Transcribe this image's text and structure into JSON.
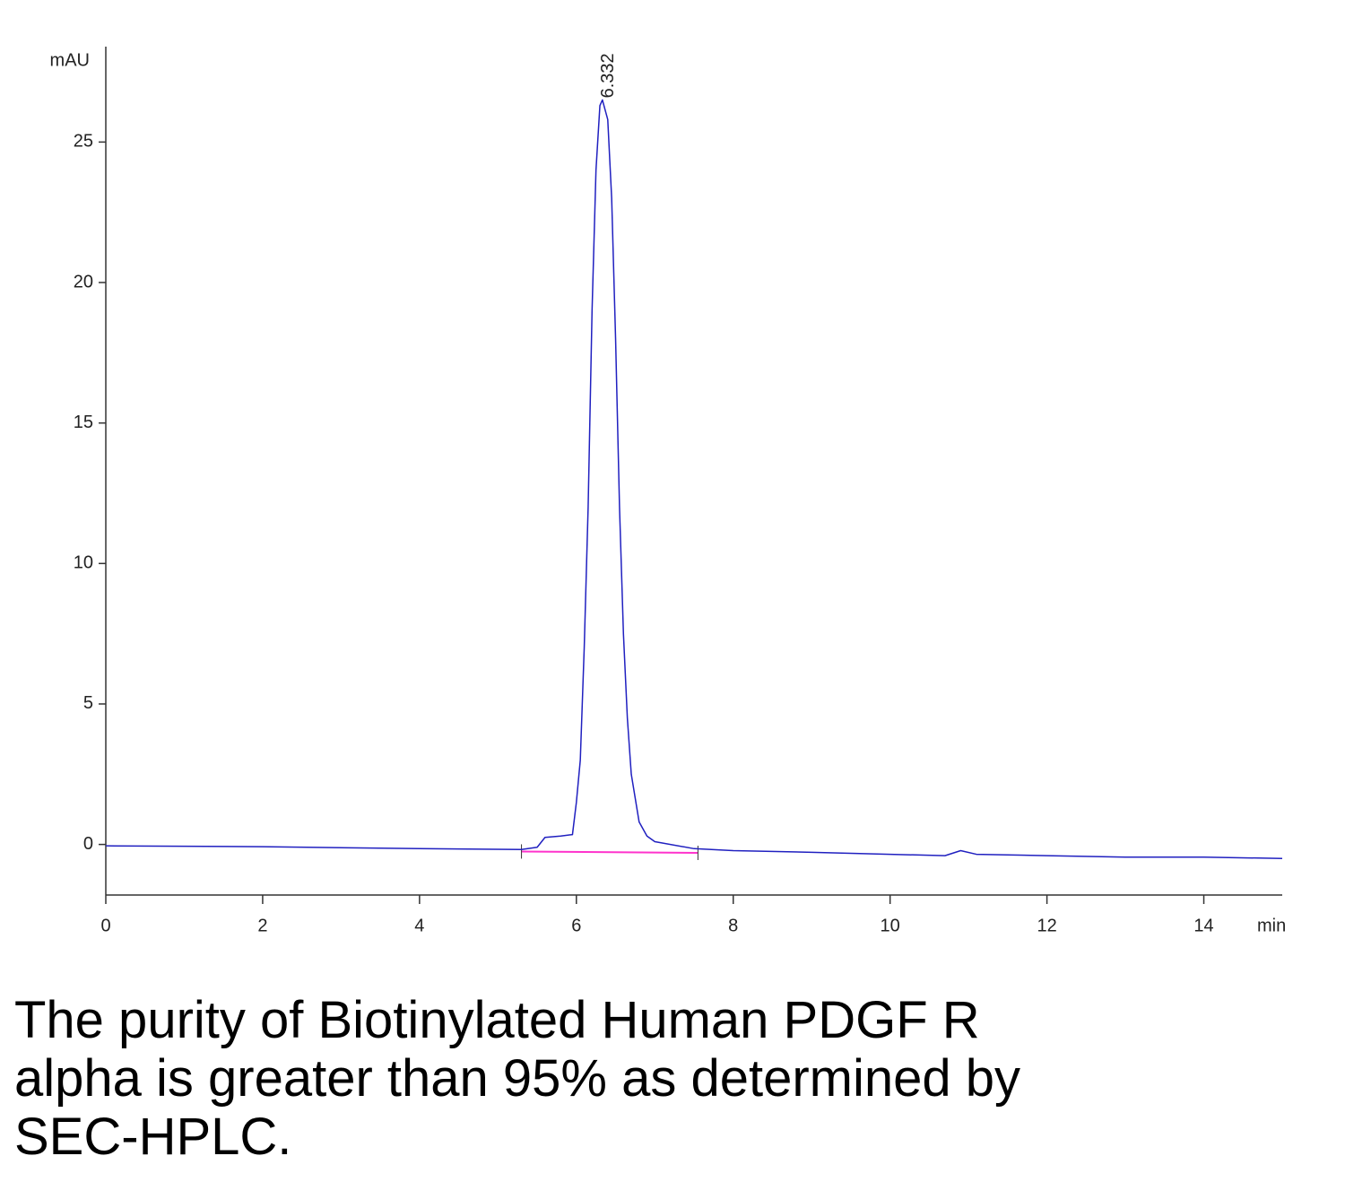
{
  "chart_data": {
    "type": "line",
    "y_label": "mAU",
    "x_label": "min",
    "xlim": [
      0,
      15
    ],
    "ylim": [
      -1.8,
      28.3
    ],
    "xticks": [
      0,
      2,
      4,
      6,
      8,
      10,
      12,
      14
    ],
    "yticks": [
      0,
      5,
      10,
      15,
      20,
      25
    ],
    "series": [
      {
        "color": "#2020c0",
        "x": [
          0,
          2,
          4,
          5.3,
          5.5,
          5.6,
          5.8,
          5.95,
          6.0,
          6.05,
          6.1,
          6.15,
          6.2,
          6.25,
          6.3,
          6.332,
          6.4,
          6.45,
          6.5,
          6.55,
          6.6,
          6.65,
          6.7,
          6.8,
          6.9,
          7.0,
          7.5,
          8,
          9,
          10,
          10.7,
          10.9,
          11.1,
          12,
          13,
          14,
          15
        ],
        "values": [
          -0.05,
          -0.08,
          -0.15,
          -0.18,
          -0.1,
          0.25,
          0.3,
          0.35,
          1.5,
          3,
          7,
          12,
          19,
          24,
          26.3,
          26.5,
          25.8,
          23,
          18,
          12,
          7.5,
          4.5,
          2.5,
          0.8,
          0.3,
          0.1,
          -0.15,
          -0.22,
          -0.28,
          -0.35,
          -0.4,
          -0.22,
          -0.35,
          -0.4,
          -0.45,
          -0.45,
          -0.5
        ]
      }
    ],
    "baseline": {
      "color": "#ff33cc",
      "x": [
        5.3,
        7.55
      ],
      "values": [
        -0.25,
        -0.3
      ]
    },
    "annotation": {
      "text": "6.332",
      "x": 6.332,
      "y": 26.5
    }
  },
  "caption": [
    "The purity of Biotinylated Human PDGF R",
    "alpha is greater than 95% as determined by",
    "SEC-HPLC."
  ]
}
